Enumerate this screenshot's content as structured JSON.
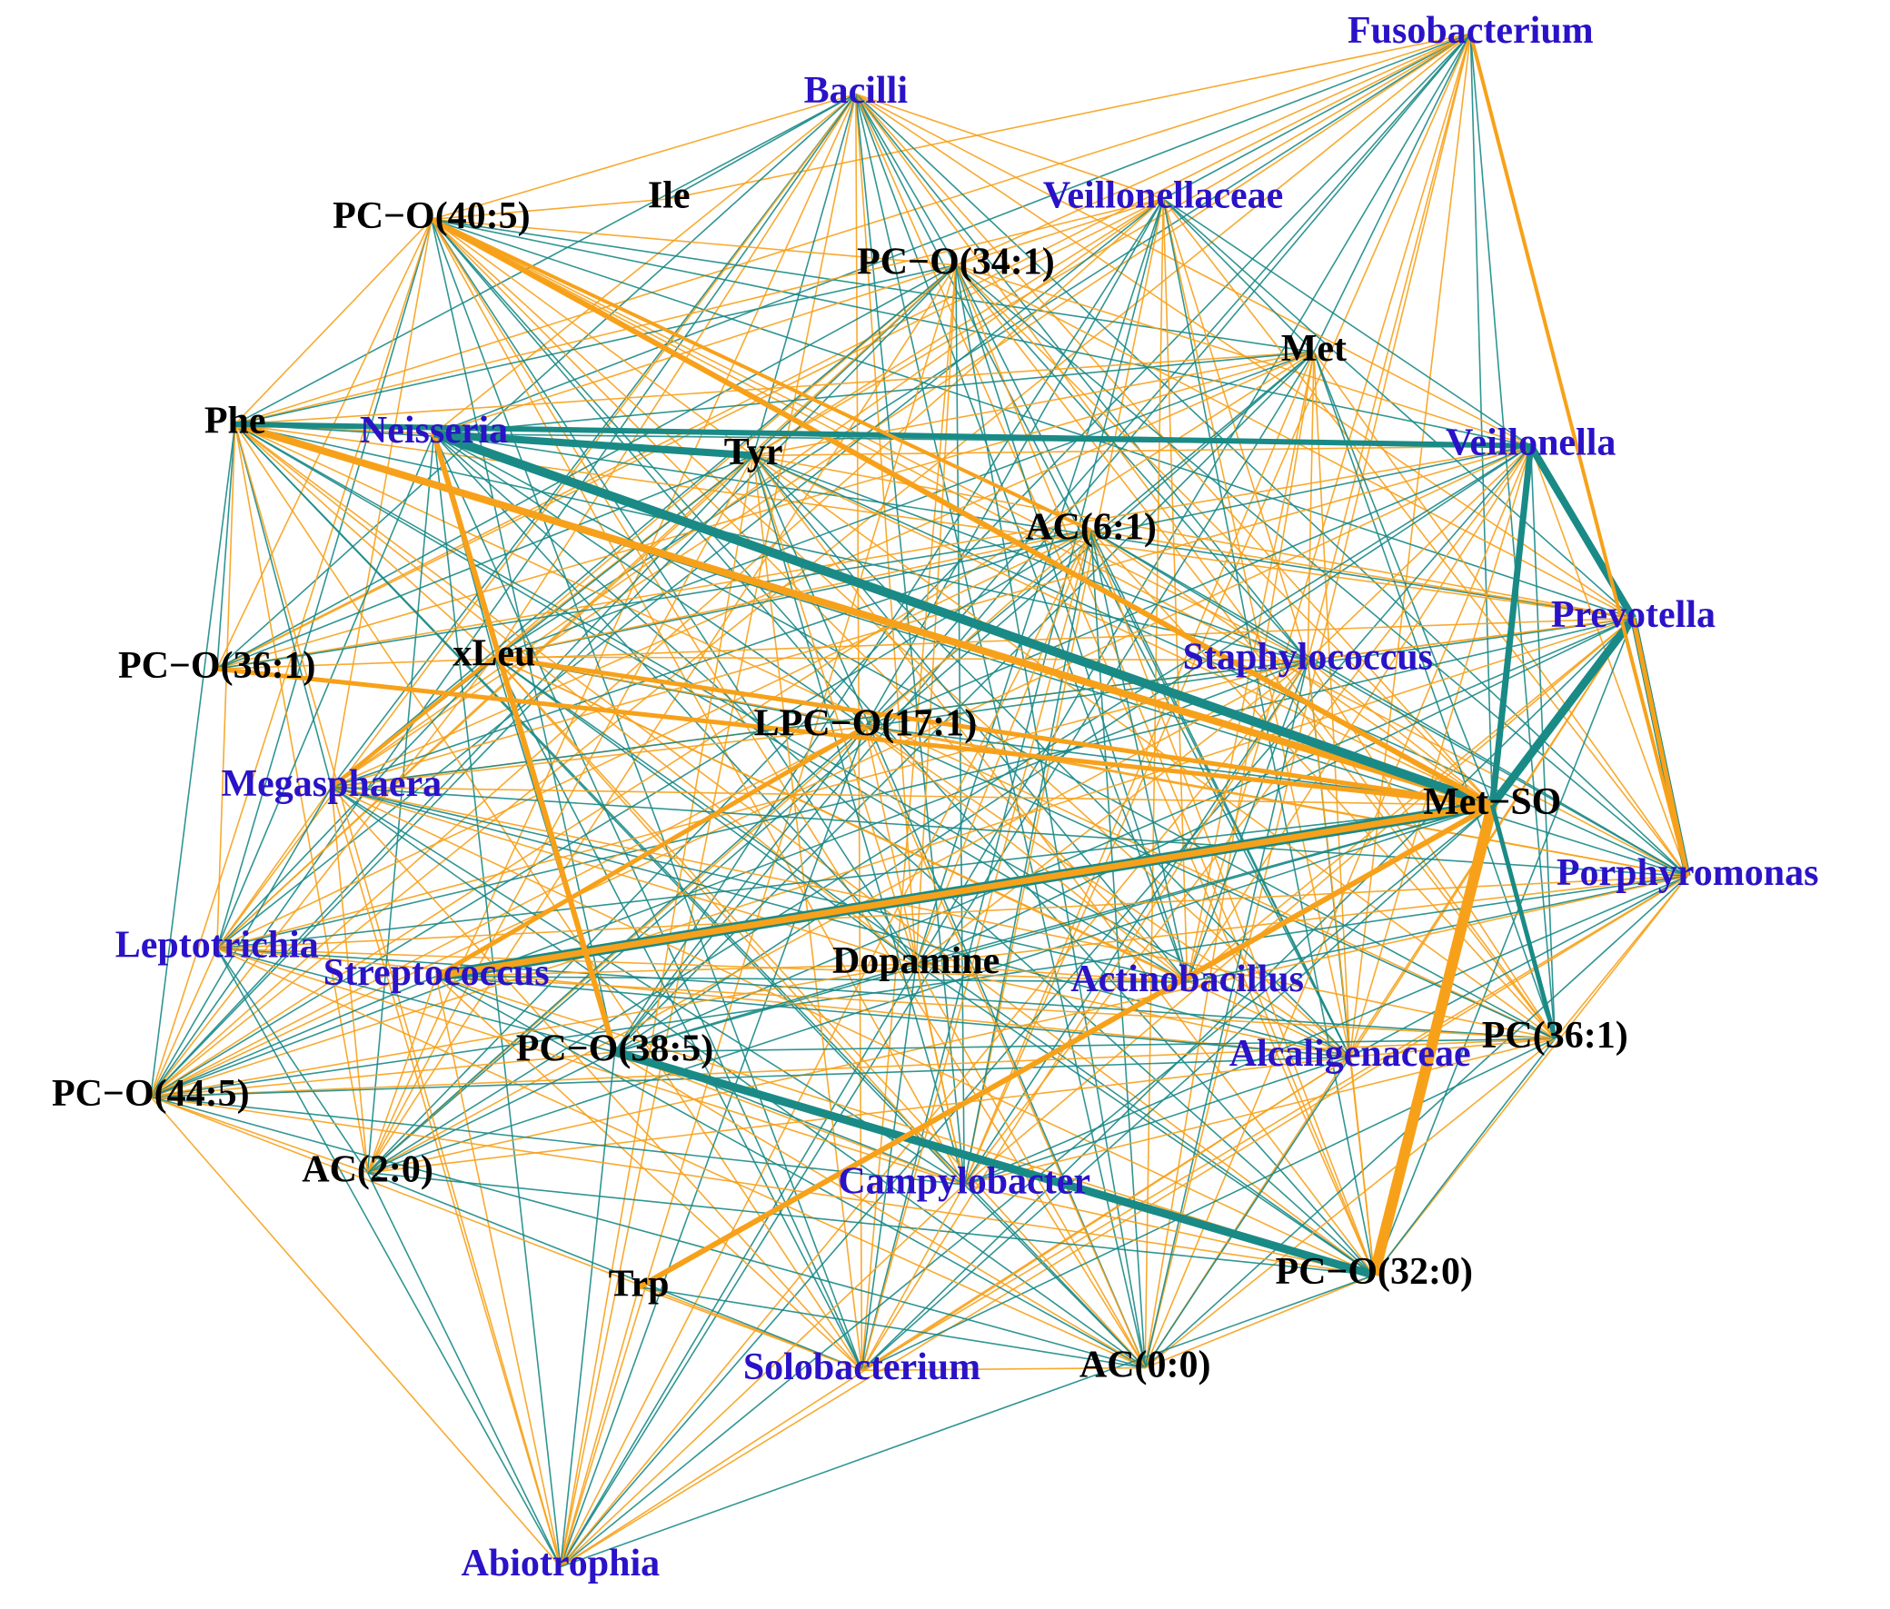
{
  "nodes": [
    {
      "label": "Fusobacterium",
      "color": "#2a12c8"
    },
    {
      "label": "Bacilli",
      "color": "#2a12c8"
    },
    {
      "label": "PC−O(40:5)",
      "color": "#000000"
    },
    {
      "label": "Ile",
      "color": "#000000"
    },
    {
      "label": "Veillonellaceae",
      "color": "#2a12c8"
    },
    {
      "label": "PC−O(34:1)",
      "color": "#000000"
    },
    {
      "label": "Met",
      "color": "#000000"
    },
    {
      "label": "Phe",
      "color": "#000000"
    },
    {
      "label": "Neisseria",
      "color": "#2a12c8"
    },
    {
      "label": "Tyr",
      "color": "#000000"
    },
    {
      "label": "Veillonella",
      "color": "#2a12c8"
    },
    {
      "label": "AC(6:1)",
      "color": "#000000"
    },
    {
      "label": "Prevotella",
      "color": "#2a12c8"
    },
    {
      "label": "PC−O(36:1)",
      "color": "#000000"
    },
    {
      "label": "xLeu",
      "color": "#000000"
    },
    {
      "label": "Staphylococcus",
      "color": "#2a12c8"
    },
    {
      "label": "LPC−O(17:1)",
      "color": "#000000"
    },
    {
      "label": "Megasphaera",
      "color": "#2a12c8"
    },
    {
      "label": "Met−SO",
      "color": "#000000"
    },
    {
      "label": "Porphyromonas",
      "color": "#2a12c8"
    },
    {
      "label": "Leptotrichia",
      "color": "#2a12c8"
    },
    {
      "label": "Streptococcus",
      "color": "#2a12c8"
    },
    {
      "label": "Dopamine",
      "color": "#000000"
    },
    {
      "label": "Actinobacillus",
      "color": "#2a12c8"
    },
    {
      "label": "PC(36:1)",
      "color": "#000000"
    },
    {
      "label": "Alcaligenaceae",
      "color": "#2a12c8"
    },
    {
      "label": "PC−O(38:5)",
      "color": "#000000"
    },
    {
      "label": "PC−O(44:5)",
      "color": "#000000"
    },
    {
      "label": "AC(2:0)",
      "color": "#000000"
    },
    {
      "label": "Campylobacter",
      "color": "#2a12c8"
    },
    {
      "label": "PC−O(32:0)",
      "color": "#000000"
    },
    {
      "label": "Trp",
      "color": "#000000"
    },
    {
      "label": "Solobacterium",
      "color": "#2a12c8"
    },
    {
      "label": "AC(0:0)",
      "color": "#000000"
    },
    {
      "label": "Abiotrophia",
      "color": "#2a12c8"
    }
  ],
  "edge_colors": [
    "#1a8a86",
    "#f7a11a"
  ]
}
